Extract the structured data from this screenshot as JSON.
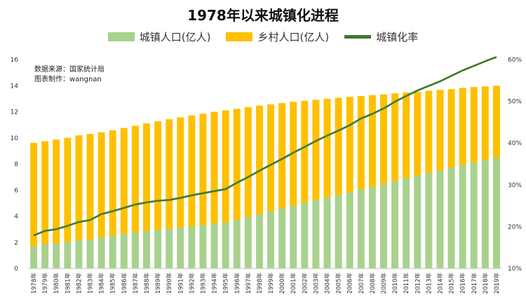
{
  "title": "1978年以来城镇化进程",
  "source": {
    "line1": "数据来源：国家统计局",
    "line2": "图表制作：wangnan"
  },
  "colors": {
    "urban": "#a9d18e",
    "rural": "#ffc000",
    "rate": "#3d7a28"
  },
  "chart_data": {
    "type": "bar",
    "stacked": true,
    "title": "1978年以来城镇化进程",
    "categories": [
      "1978年",
      "1979年",
      "1980年",
      "1981年",
      "1982年",
      "1983年",
      "1984年",
      "1985年",
      "1986年",
      "1987年",
      "1988年",
      "1989年",
      "1990年",
      "1991年",
      "1992年",
      "1993年",
      "1994年",
      "1995年",
      "1996年",
      "1997年",
      "1998年",
      "1999年",
      "2000年",
      "2001年",
      "2002年",
      "2003年",
      "2004年",
      "2005年",
      "2006年",
      "2007年",
      "2008年",
      "2009年",
      "2010年",
      "2011年",
      "2012年",
      "2013年",
      "2014年",
      "2015年",
      "2016年",
      "2017年",
      "2018年",
      "2019年"
    ],
    "series": [
      {
        "name": "城镇人口(亿人)",
        "axis": "left",
        "type": "bar",
        "values": [
          1.72,
          1.85,
          1.91,
          2.02,
          2.15,
          2.22,
          2.4,
          2.51,
          2.64,
          2.77,
          2.87,
          2.95,
          3.02,
          3.12,
          3.22,
          3.32,
          3.43,
          3.52,
          3.73,
          3.94,
          4.16,
          4.37,
          4.59,
          4.81,
          5.02,
          5.24,
          5.43,
          5.62,
          5.83,
          6.06,
          6.24,
          6.45,
          6.7,
          6.91,
          7.12,
          7.31,
          7.49,
          7.71,
          7.93,
          8.13,
          8.31,
          8.48
        ]
      },
      {
        "name": "乡村人口(亿人)",
        "axis": "left",
        "type": "bar",
        "values": [
          7.9,
          7.9,
          7.96,
          7.99,
          8.05,
          8.08,
          8.03,
          8.08,
          8.12,
          8.16,
          8.24,
          8.32,
          8.41,
          8.46,
          8.5,
          8.53,
          8.57,
          8.59,
          8.5,
          8.42,
          8.32,
          8.2,
          8.08,
          7.96,
          7.82,
          7.68,
          7.57,
          7.45,
          7.32,
          7.15,
          7.04,
          6.89,
          6.71,
          6.57,
          6.42,
          6.3,
          6.19,
          6.03,
          5.9,
          5.77,
          5.64,
          5.52
        ]
      },
      {
        "name": "城镇化率",
        "axis": "right",
        "type": "line",
        "values": [
          17.9,
          19.0,
          19.4,
          20.2,
          21.1,
          21.6,
          23.0,
          23.7,
          24.5,
          25.3,
          25.8,
          26.2,
          26.4,
          26.9,
          27.5,
          28.0,
          28.5,
          29.0,
          30.5,
          31.9,
          33.4,
          34.8,
          36.2,
          37.7,
          39.1,
          40.5,
          41.8,
          43.0,
          44.3,
          45.9,
          47.0,
          48.3,
          49.9,
          51.3,
          52.6,
          53.7,
          54.8,
          56.1,
          57.4,
          58.5,
          59.6,
          60.6
        ]
      }
    ],
    "ylim": [
      0,
      16
    ],
    "yticks": [
      "0",
      "2",
      "4",
      "6",
      "8",
      "10",
      "12",
      "14",
      "16"
    ],
    "y2lim": [
      10,
      60
    ],
    "y2ticks": [
      "10%",
      "20%",
      "30%",
      "40%",
      "50%",
      "60%"
    ],
    "legend_position": "top",
    "grid": false
  }
}
